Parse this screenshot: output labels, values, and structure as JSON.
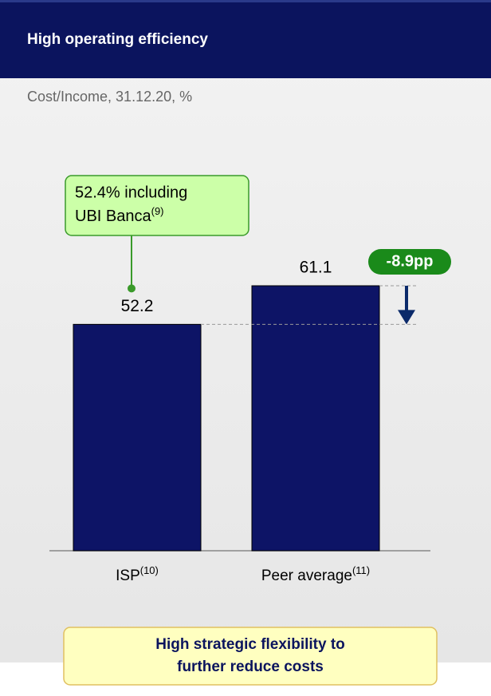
{
  "chart_data": {
    "type": "bar",
    "title": "High operating efficiency",
    "subtitle": "Cost/Income, 31.12.20, %",
    "categories": [
      "ISP",
      "Peer average"
    ],
    "category_notes": [
      "(10)",
      "(11)"
    ],
    "values": [
      52.2,
      61.1
    ],
    "color": "#0d1466",
    "callout": {
      "lines": [
        "52.4% including",
        "UBI Banca"
      ],
      "note": "(9)"
    },
    "delta_label": "-8.9pp",
    "footer": [
      "High strategic flexibility to",
      "further reduce costs"
    ]
  }
}
